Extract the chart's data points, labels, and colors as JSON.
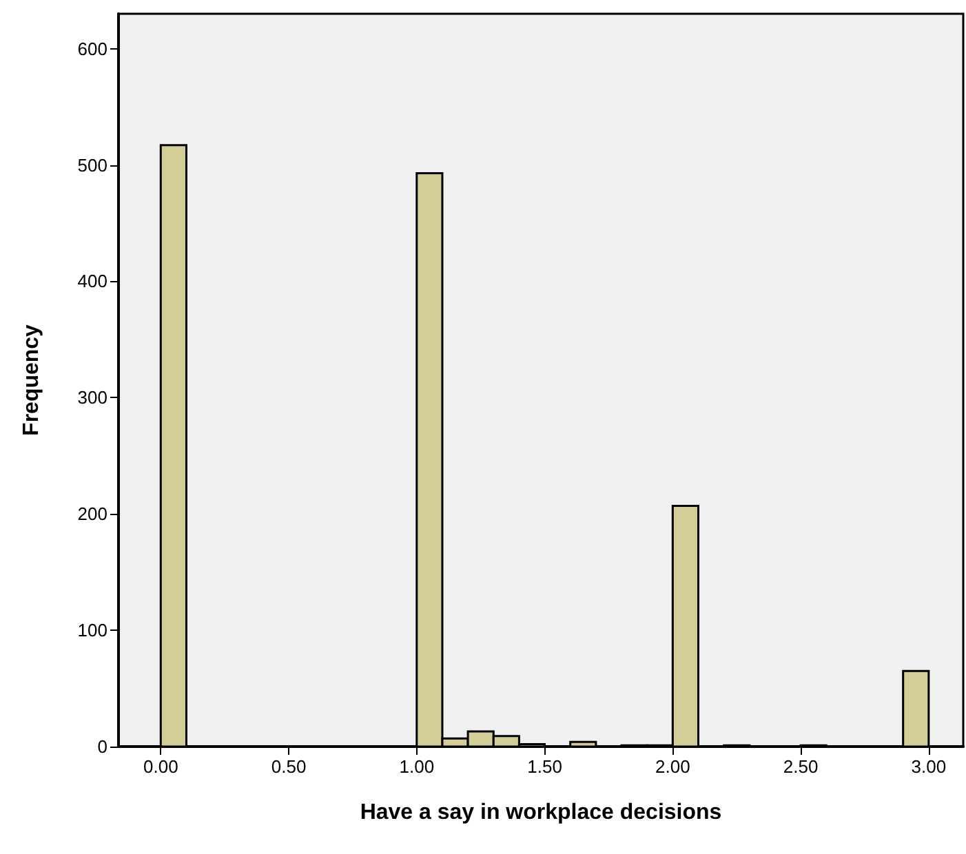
{
  "chart_data": {
    "type": "histogram",
    "xlabel": "Have a say in workplace decisions",
    "ylabel": "Frequency",
    "bins": [
      0,
      0.1,
      0.2,
      0.3,
      0.4,
      0.5,
      0.6,
      0.7,
      0.8,
      0.9,
      1.0,
      1.1,
      1.2,
      1.3,
      1.4,
      1.5,
      1.6,
      1.7,
      1.8,
      1.9,
      2.0,
      2.1,
      2.2,
      2.3,
      2.4,
      2.5,
      2.6,
      2.7,
      2.8,
      2.9,
      3.0
    ],
    "values": [
      517,
      0,
      0,
      0,
      0,
      0,
      0,
      0,
      0,
      0,
      493,
      7,
      13,
      9,
      2,
      0,
      4,
      0,
      1,
      1,
      207,
      0,
      1,
      0,
      0,
      1,
      0,
      0,
      0,
      65
    ],
    "color": "#d3ce98",
    "xlim": [
      -0.165,
      3.135
    ],
    "xticks": [
      {
        "value": 0,
        "label": "0.00"
      },
      {
        "value": 0.5,
        "label": "0.50"
      },
      {
        "value": 1,
        "label": "1.00"
      },
      {
        "value": 1.5,
        "label": "1.50"
      },
      {
        "value": 2,
        "label": "2.00"
      },
      {
        "value": 2.5,
        "label": "2.50"
      },
      {
        "value": 3,
        "label": "3.00"
      }
    ],
    "ylim": [
      0,
      630
    ],
    "yticks": [
      0,
      100,
      200,
      300,
      400,
      500,
      600
    ],
    "grid": false
  }
}
